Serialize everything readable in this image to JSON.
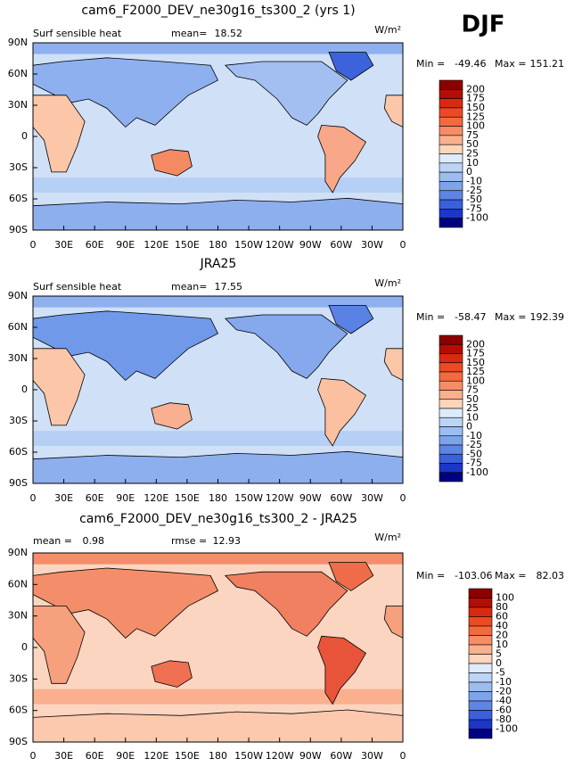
{
  "figure_label": "DJF",
  "lat_labels": [
    "90N",
    "60N",
    "30N",
    "0",
    "30S",
    "60S",
    "90S"
  ],
  "lon_labels": [
    "0",
    "30E",
    "60E",
    "90E",
    "120E",
    "150E",
    "180",
    "150W",
    "120W",
    "90W",
    "60W",
    "30W",
    "0"
  ],
  "panels": [
    {
      "title": "cam6_F2000_DEV_ne30g16_ts300_2 (yrs 1)",
      "variable": "Surf sensible heat",
      "stat1_label": "mean=",
      "stat1": 18.52,
      "units": "W/m²",
      "min_label": "Min =",
      "min": -49.46,
      "max_label": "Max =",
      "max": 151.21,
      "levels": [
        200,
        175,
        150,
        125,
        100,
        75,
        50,
        25,
        10,
        0,
        -10,
        -25,
        -50,
        -75,
        -100
      ],
      "colors": [
        "#8b0000",
        "#b50d05",
        "#d82a10",
        "#ec4a22",
        "#f36a3e",
        "#f78d66",
        "#fab08e",
        "#fdd5bb",
        "#deebfb",
        "#bcd4f6",
        "#9dbdf0",
        "#7ea3ea",
        "#5e84e4",
        "#3a60de",
        "#1c36c8",
        "#000080"
      ]
    },
    {
      "title": "JRA25",
      "variable": "Surf sensible heat",
      "stat1_label": "mean=",
      "stat1": 17.55,
      "units": "W/m²",
      "min_label": "Min =",
      "min": -58.47,
      "max_label": "Max =",
      "max": 192.39,
      "levels": [
        200,
        175,
        150,
        125,
        100,
        75,
        50,
        25,
        10,
        0,
        -10,
        -25,
        -50,
        -75,
        -100
      ],
      "colors": [
        "#8b0000",
        "#b50d05",
        "#d82a10",
        "#ec4a22",
        "#f36a3e",
        "#f78d66",
        "#fab08e",
        "#fdd5bb",
        "#deebfb",
        "#bcd4f6",
        "#9dbdf0",
        "#7ea3ea",
        "#5e84e4",
        "#3a60de",
        "#1c36c8",
        "#000080"
      ]
    },
    {
      "title": "cam6_F2000_DEV_ne30g16_ts300_2 - JRA25",
      "variable": null,
      "stat1_label": "mean =",
      "stat1": 0.98,
      "stat2_label": "rmse =",
      "stat2": 12.93,
      "units": "W/m²",
      "min_label": "Min =",
      "min": -103.06,
      "max_label": "Max =",
      "max": 82.03,
      "levels": [
        100,
        80,
        60,
        40,
        20,
        10,
        5,
        0,
        -5,
        -10,
        -20,
        -40,
        -60,
        -80,
        -100
      ],
      "colors": [
        "#8b0000",
        "#b50d05",
        "#d82a10",
        "#ec4a22",
        "#f36a3e",
        "#f78d66",
        "#fab08e",
        "#fdd5bb",
        "#deebfb",
        "#bcd4f6",
        "#9dbdf0",
        "#7ea3ea",
        "#5e84e4",
        "#3a60de",
        "#1c36c8",
        "#000080"
      ]
    }
  ]
}
